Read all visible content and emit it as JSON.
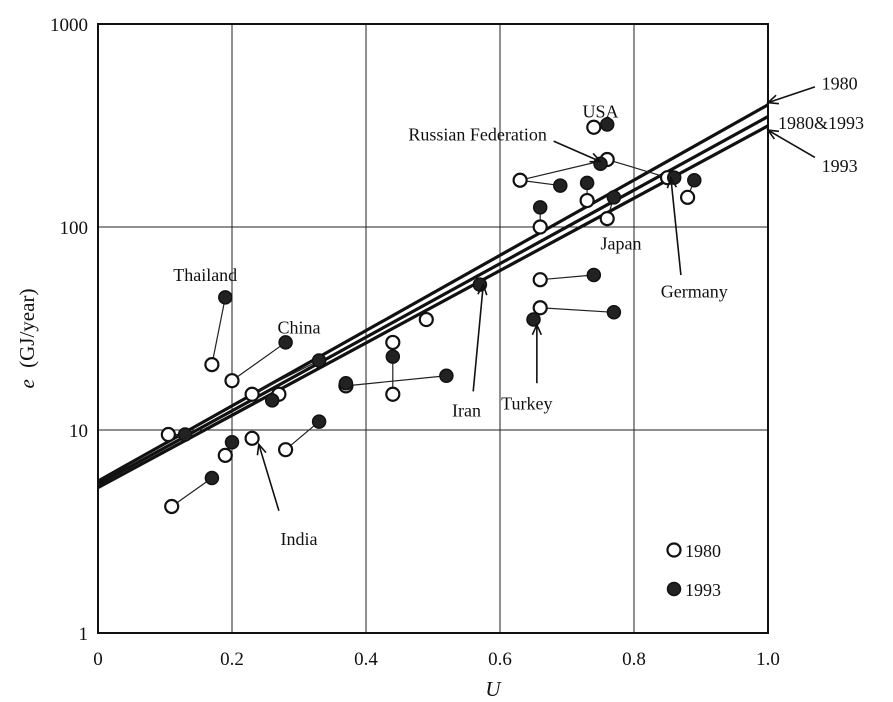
{
  "chart_data": {
    "type": "scatter",
    "title": "",
    "xlabel": "U",
    "ylabel_symbol": "e",
    "ylabel_unit": "(GJ/year)",
    "x_range": [
      0,
      1.0
    ],
    "y_range": [
      1,
      1000
    ],
    "y_scale": "log",
    "grid": true,
    "x_ticks": [
      {
        "value": 0,
        "label": "0"
      },
      {
        "value": 0.2,
        "label": "0.2"
      },
      {
        "value": 0.4,
        "label": "0.4"
      },
      {
        "value": 0.6,
        "label": "0.6"
      },
      {
        "value": 0.8,
        "label": "0.8"
      },
      {
        "value": 1.0,
        "label": "1.0"
      }
    ],
    "y_ticks": [
      {
        "value": 1,
        "label": "1"
      },
      {
        "value": 10,
        "label": "10"
      },
      {
        "value": 100,
        "label": "100"
      },
      {
        "value": 1000,
        "label": "1000"
      }
    ],
    "legend": {
      "position": "bottom-right",
      "entries": [
        {
          "label": "1980",
          "marker": "open-circle"
        },
        {
          "label": "1993",
          "marker": "filled-circle"
        }
      ]
    },
    "fit_lines": [
      {
        "label": "1980",
        "x": [
          0,
          1.0
        ],
        "y": [
          5.6,
          400
        ]
      },
      {
        "label": "1980&1993",
        "x": [
          0,
          1.0
        ],
        "y": [
          5.4,
          350
        ]
      },
      {
        "label": "1993",
        "x": [
          0,
          1.0
        ],
        "y": [
          5.2,
          315
        ]
      }
    ],
    "series": [
      {
        "name": "1980",
        "marker": "open",
        "points": [
          [
            0.11,
            4.2
          ],
          [
            0.19,
            7.5
          ],
          [
            0.23,
            9.1
          ],
          [
            0.28,
            8.0
          ],
          [
            0.17,
            21
          ],
          [
            0.2,
            17.5
          ],
          [
            0.23,
            15
          ],
          [
            0.27,
            15
          ],
          [
            0.37,
            16.5
          ],
          [
            0.44,
            27
          ],
          [
            0.44,
            15
          ],
          [
            0.49,
            35
          ],
          [
            0.66,
            40
          ],
          [
            0.66,
            55
          ],
          [
            0.66,
            100
          ],
          [
            0.63,
            170
          ],
          [
            0.73,
            135
          ],
          [
            0.74,
            310
          ],
          [
            0.76,
            215
          ],
          [
            0.76,
            110
          ],
          [
            0.85,
            175
          ],
          [
            0.88,
            140
          ],
          [
            0.105,
            9.5
          ]
        ]
      },
      {
        "name": "1993",
        "marker": "filled",
        "points": [
          [
            0.13,
            9.5
          ],
          [
            0.17,
            5.8
          ],
          [
            0.2,
            8.7
          ],
          [
            0.19,
            45
          ],
          [
            0.26,
            14
          ],
          [
            0.28,
            27
          ],
          [
            0.33,
            22
          ],
          [
            0.33,
            11
          ],
          [
            0.37,
            17
          ],
          [
            0.44,
            23
          ],
          [
            0.52,
            18.5
          ],
          [
            0.57,
            52
          ],
          [
            0.65,
            35
          ],
          [
            0.66,
            125
          ],
          [
            0.69,
            160
          ],
          [
            0.73,
            165
          ],
          [
            0.74,
            58
          ],
          [
            0.75,
            205
          ],
          [
            0.77,
            38
          ],
          [
            0.76,
            320
          ],
          [
            0.77,
            140
          ],
          [
            0.86,
            175
          ],
          [
            0.89,
            170
          ]
        ]
      }
    ],
    "connectors": [
      [
        [
          0.11,
          4.2
        ],
        [
          0.17,
          5.8
        ]
      ],
      [
        [
          0.19,
          7.5
        ],
        [
          0.2,
          8.7
        ]
      ],
      [
        [
          0.28,
          8.0
        ],
        [
          0.33,
          11
        ]
      ],
      [
        [
          0.17,
          21
        ],
        [
          0.19,
          45
        ]
      ],
      [
        [
          0.2,
          17.5
        ],
        [
          0.28,
          27
        ]
      ],
      [
        [
          0.23,
          15
        ],
        [
          0.33,
          22
        ]
      ],
      [
        [
          0.27,
          15
        ],
        [
          0.26,
          14
        ]
      ],
      [
        [
          0.37,
          16.5
        ],
        [
          0.52,
          18.5
        ]
      ],
      [
        [
          0.44,
          27
        ],
        [
          0.44,
          23
        ]
      ],
      [
        [
          0.44,
          15
        ],
        [
          0.44,
          23
        ]
      ],
      [
        [
          0.105,
          9.5
        ],
        [
          0.13,
          9.5
        ]
      ],
      [
        [
          0.66,
          40
        ],
        [
          0.77,
          38
        ]
      ],
      [
        [
          0.66,
          55
        ],
        [
          0.74,
          58
        ]
      ],
      [
        [
          0.66,
          100
        ],
        [
          0.66,
          125
        ]
      ],
      [
        [
          0.63,
          170
        ],
        [
          0.69,
          160
        ]
      ],
      [
        [
          0.63,
          170
        ],
        [
          0.76,
          215
        ]
      ],
      [
        [
          0.76,
          215
        ],
        [
          0.85,
          175
        ]
      ],
      [
        [
          0.74,
          310
        ],
        [
          0.76,
          320
        ]
      ],
      [
        [
          0.73,
          135
        ],
        [
          0.73,
          165
        ]
      ],
      [
        [
          0.76,
          110
        ],
        [
          0.77,
          140
        ]
      ],
      [
        [
          0.88,
          140
        ],
        [
          0.89,
          170
        ]
      ]
    ],
    "annotations": [
      {
        "text": "Thailand",
        "align": "middle",
        "label_at": [
          0.16,
          58
        ],
        "arrow_tip": null
      },
      {
        "text": "China",
        "align": "middle",
        "label_at": [
          0.3,
          32
        ],
        "arrow_tip": null
      },
      {
        "text": "India",
        "align": "middle",
        "label_at": [
          0.3,
          2.9
        ],
        "arrow_tip": [
          0.24,
          8.5
        ],
        "arrow_from": [
          0.27,
          4.0
        ]
      },
      {
        "text": "Iran",
        "align": "middle",
        "label_at": [
          0.55,
          12.5
        ],
        "arrow_tip": [
          0.575,
          52
        ],
        "arrow_from": [
          0.56,
          15.5
        ]
      },
      {
        "text": "Turkey",
        "align": "middle",
        "label_at": [
          0.64,
          13.5
        ],
        "arrow_tip": [
          0.655,
          33
        ],
        "arrow_from": [
          0.655,
          17
        ]
      },
      {
        "text": "USA",
        "align": "middle",
        "label_at": [
          0.75,
          370
        ],
        "arrow_tip": null
      },
      {
        "text": "Russian Federation",
        "align": "end",
        "label_at": [
          0.67,
          285
        ],
        "arrow_tip": [
          0.75,
          210
        ],
        "arrow_from": [
          0.68,
          265
        ]
      },
      {
        "text": "Japan",
        "align": "start",
        "label_at": [
          0.75,
          83
        ],
        "arrow_tip": null
      },
      {
        "text": "Germany",
        "align": "start",
        "label_at": [
          0.84,
          48
        ],
        "arrow_tip": [
          0.855,
          175
        ],
        "arrow_from": [
          0.87,
          58
        ]
      },
      {
        "text": "1980",
        "align": "start",
        "label_at": [
          1.08,
          510
        ],
        "arrow_tip": [
          1.0,
          410
        ],
        "arrow_from": [
          1.07,
          490
        ]
      },
      {
        "text": "1980&1993",
        "align": "start",
        "label_at": [
          1.015,
          325
        ],
        "arrow_tip": null
      },
      {
        "text": "1993",
        "align": "start",
        "label_at": [
          1.08,
          200
        ],
        "arrow_tip": [
          1.0,
          300
        ],
        "arrow_from": [
          1.07,
          220
        ]
      }
    ]
  }
}
